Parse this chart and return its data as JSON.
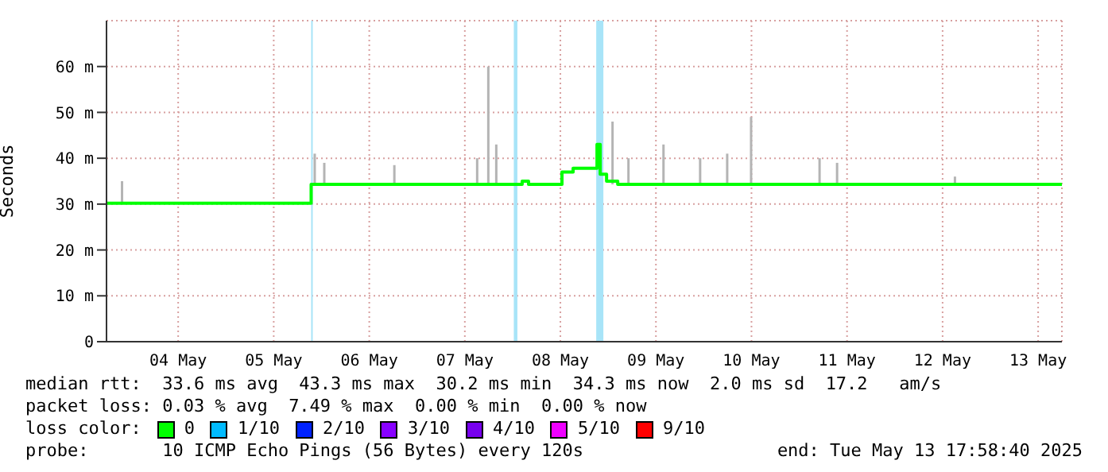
{
  "chart_data": {
    "type": "step",
    "ylabel": "Seconds",
    "legend_title": "loss color:",
    "legend": "bottom",
    "grid": true,
    "xlim": [
      "2025-05-03T18:00",
      "2025-05-13T17:58"
    ],
    "xticks": [
      {
        "value": "2025-05-04T12:00",
        "label": "04 May"
      },
      {
        "value": "2025-05-05T12:00",
        "label": "05 May"
      },
      {
        "value": "2025-05-06T12:00",
        "label": "06 May"
      },
      {
        "value": "2025-05-07T12:00",
        "label": "07 May"
      },
      {
        "value": "2025-05-08T12:00",
        "label": "08 May"
      },
      {
        "value": "2025-05-09T12:00",
        "label": "09 May"
      },
      {
        "value": "2025-05-10T12:00",
        "label": "10 May"
      },
      {
        "value": "2025-05-11T12:00",
        "label": "11 May"
      },
      {
        "value": "2025-05-12T12:00",
        "label": "12 May"
      },
      {
        "value": "2025-05-13T12:00",
        "label": "13 May"
      }
    ],
    "ylim": [
      0,
      70
    ],
    "yticks": [
      0,
      {
        "value": 10,
        "label": "10 m"
      },
      {
        "value": 20,
        "label": "20 m"
      },
      {
        "value": 30,
        "label": "30 m"
      },
      {
        "value": 40,
        "label": "40 m"
      },
      {
        "value": 50,
        "label": "50 m"
      },
      {
        "value": 60,
        "label": "60 m"
      }
    ],
    "series": [
      {
        "type": "bar",
        "color": "#b4b4b4",
        "x": [
          "2025-05-03T22:00",
          "2025-05-05T22:24",
          "2025-05-06T00:48",
          "2025-05-06T18:24",
          "2025-05-07T15:12",
          "2025-05-07T18:00",
          "2025-05-07T20:00",
          "2025-05-09T01:12",
          "2025-05-09T05:12",
          "2025-05-09T14:00",
          "2025-05-09T23:12",
          "2025-05-10T06:00",
          "2025-05-10T12:00",
          "2025-05-11T05:12",
          "2025-05-11T09:36",
          "2025-05-12T15:12"
        ],
        "base": [
          30.2,
          34.3,
          34.3,
          34.3,
          34.3,
          34.3,
          34.3,
          34.3,
          34.3,
          34.3,
          34.3,
          34.3,
          34.3,
          34.3,
          34.3,
          34.3
        ],
        "values": [
          4.8,
          6.7,
          4.7,
          4.2,
          5.7,
          25.7,
          8.7,
          13.7,
          5.7,
          8.7,
          5.7,
          6.7,
          14.7,
          5.7,
          4.7,
          1.7
        ]
      },
      {
        "name": "0",
        "color": "#00ff00",
        "x": [
          "2025-05-03T18:00",
          "2025-05-05T21:24",
          "2025-05-08T02:24",
          "2025-05-08T04:00",
          "2025-05-08T12:24",
          "2025-05-08T15:12",
          "2025-05-08T21:12",
          "2025-05-08T22:00",
          "2025-05-08T23:36",
          "2025-05-09T02:24",
          "2025-05-13T17:58"
        ],
        "values": [
          30.2,
          34.3,
          35,
          34.3,
          37,
          37.8,
          43,
          36.5,
          35,
          34.3,
          34.3
        ]
      },
      {
        "name": "1/10",
        "color": "#00bbff"
      },
      {
        "name": "2/10",
        "color": "#0022ff"
      },
      {
        "name": "3/10",
        "color": "#8800ff"
      },
      {
        "name": "4/10",
        "color": "#7700ee"
      },
      {
        "name": "5/10",
        "color": "#ee00ff"
      },
      {
        "name": "9/10",
        "color": "#ff0000"
      }
    ],
    "bands": [
      {
        "axis": "x",
        "from": "2025-05-05T21:24",
        "to": "2025-05-05T21:48",
        "color": "#a8e4f8"
      },
      {
        "axis": "x",
        "from": "2025-05-08T00:18",
        "to": "2025-05-08T01:12",
        "color": "#a8e4f8"
      },
      {
        "axis": "x",
        "from": "2025-05-08T21:00",
        "to": "2025-05-08T22:48",
        "color": "#a8e4f8"
      }
    ],
    "annotations": [
      "median rtt:  33.6 ms avg  43.3 ms max  30.2 ms min  34.3 ms now  2.0 ms sd  17.2   am/s",
      "packet loss: 0.03 % avg  7.49 % max  0.00 % min  0.00 % now",
      "probe:       10 ICMP Echo Pings (56 Bytes) every 120s",
      "end: Tue May 13 17:58:40 2025"
    ]
  }
}
